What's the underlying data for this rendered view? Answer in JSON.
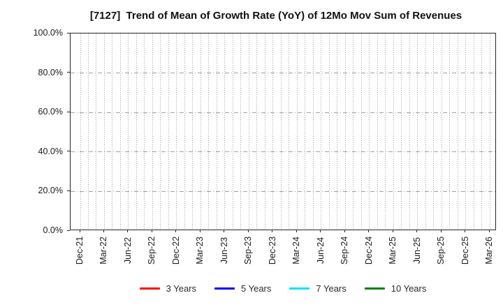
{
  "chart_data": {
    "type": "line",
    "title": "[7127]  Trend of Mean of Growth Rate (YoY) of 12Mo Mov Sum of Revenues",
    "xlabel": "",
    "ylabel": "",
    "ylim": [
      0.0,
      100.0
    ],
    "y_tick_labels": [
      "0.0%",
      "20.0%",
      "40.0%",
      "60.0%",
      "80.0%",
      "100.0%"
    ],
    "x_tick_labels": [
      "Dec-21",
      "Mar-22",
      "Jun-22",
      "Sep-22",
      "Dec-22",
      "Mar-23",
      "Jun-23",
      "Sep-23",
      "Dec-23",
      "Mar-24",
      "Jun-24",
      "Sep-24",
      "Dec-24",
      "Mar-25",
      "Jun-25",
      "Sep-25",
      "Dec-25",
      "Mar-26"
    ],
    "x_minor_gridlines_per_label_interval": 3,
    "grid": true,
    "grid_color": "#a0a0a0",
    "grid_style_horizontal": "dash-dot",
    "grid_style_vertical": "dotted",
    "legend_position": "bottom-center",
    "series": [
      {
        "name": "3 Years",
        "color": "#ff0000",
        "values": []
      },
      {
        "name": "5 Years",
        "color": "#0000ff",
        "values": []
      },
      {
        "name": "7 Years",
        "color": "#00e5ee",
        "values": []
      },
      {
        "name": "10 Years",
        "color": "#008000",
        "values": []
      }
    ]
  }
}
